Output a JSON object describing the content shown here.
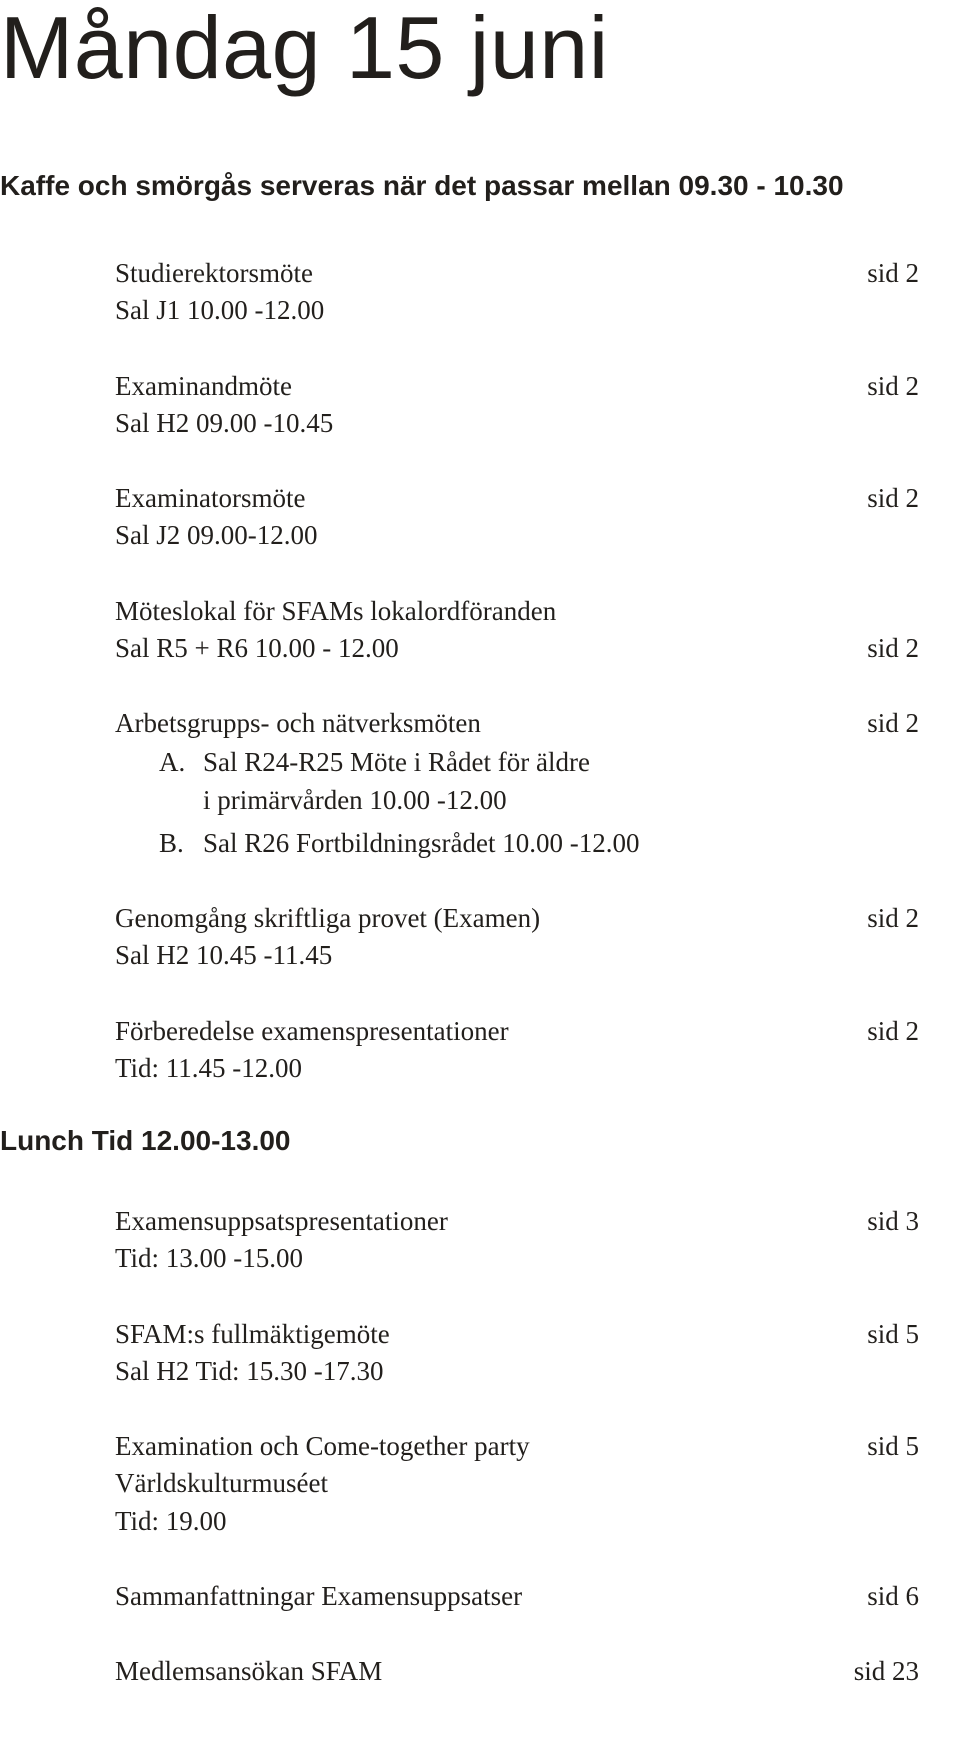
{
  "title": "Måndag 15 juni",
  "subtitle": "Kaffe och smörgås serveras när det passar mellan 09.30 - 10.30",
  "section_break": "Lunch Tid 12.00-13.00",
  "entries": [
    {
      "label": "Studierektorsmöte",
      "sub": "Sal J1 10.00 -12.00",
      "page": "sid 2"
    },
    {
      "label": "Examinandmöte",
      "sub": "Sal H2 09.00 -10.45",
      "page": "sid 2"
    },
    {
      "label": "Examinatorsmöte",
      "sub": "Sal J2 09.00-12.00",
      "page": "sid 2"
    },
    {
      "label": "Möteslokal för SFAMs lokalordföranden",
      "sub": "Sal R5 + R6 10.00 - 12.00",
      "page": "sid 2",
      "page_on_sub": true
    },
    {
      "label": "Arbetsgrupps- och nätverksmöten",
      "page": "sid 2",
      "list": [
        {
          "marker": "A.",
          "text": "Sal R24-R25 Möte i Rådet för äldre\ni primärvården 10.00 -12.00"
        },
        {
          "marker": "B.",
          "text": "Sal R26 Fortbildningsrådet 10.00 -12.00"
        }
      ]
    },
    {
      "label": "Genomgång skriftliga provet (Examen)",
      "sub": "Sal H2 10.45 -11.45",
      "page": "sid 2"
    },
    {
      "label": "Förberedelse examenspresentationer",
      "sub": "Tid: 11.45 -12.00",
      "page": "sid 2"
    },
    {
      "break": true
    },
    {
      "label": "Examensuppsatspresentationer",
      "sub": "Tid: 13.00 -15.00",
      "page": "sid 3"
    },
    {
      "label": "SFAM:s fullmäktigemöte",
      "sub": "Sal H2 Tid: 15.30 -17.30",
      "page": "sid 5"
    },
    {
      "label": "Examination och Come-together party",
      "sub": "Världskulturmuséet",
      "sub2": "Tid: 19.00",
      "page": "sid 5"
    },
    {
      "label": "Sammanfattningar Examensuppsatser",
      "page": "sid 6"
    },
    {
      "label": "Medlemsansökan SFAM",
      "page": "sid 23"
    }
  ]
}
